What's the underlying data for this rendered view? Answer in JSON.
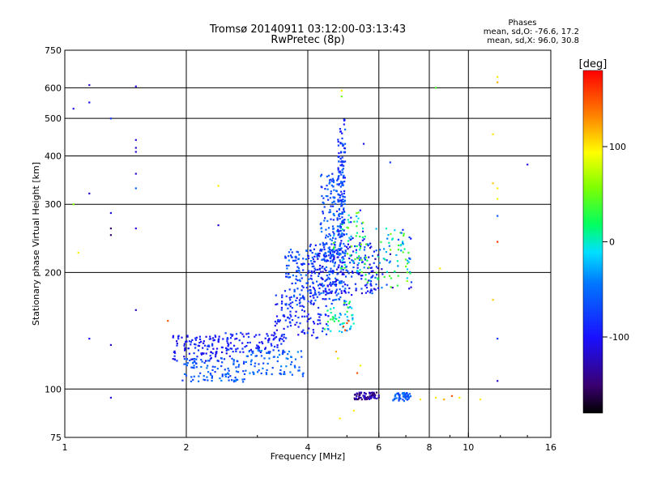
{
  "chart_data": {
    "type": "scatter",
    "title": "Tromsø 20140911 03:12:00-03:13:43",
    "subtitle": "RwPretec (8p)",
    "stats": {
      "header": "Phases",
      "line1": "mean, sd,O: -76.6, 17.2",
      "line2": "mean, sd,X:  96.0, 30.8"
    },
    "xlabel": "Frequency [MHz]",
    "ylabel": "Stationary phase Virtual Height [km]",
    "x_scale": "log",
    "y_scale": "log",
    "xlim": [
      1,
      16
    ],
    "ylim": [
      75,
      750
    ],
    "x_ticks": [
      {
        "value": 1,
        "label": "1"
      },
      {
        "value": 2,
        "label": "2"
      },
      {
        "value": 4,
        "label": "4"
      },
      {
        "value": 6,
        "label": "6"
      },
      {
        "value": 8,
        "label": "8"
      },
      {
        "value": 10,
        "label": "10"
      },
      {
        "value": 16,
        "label": "16"
      }
    ],
    "y_ticks": [
      {
        "value": 75,
        "label": "75"
      },
      {
        "value": 100,
        "label": "100"
      },
      {
        "value": 200,
        "label": "200"
      },
      {
        "value": 300,
        "label": "300"
      },
      {
        "value": 400,
        "label": "400"
      },
      {
        "value": 500,
        "label": "500"
      },
      {
        "value": 600,
        "label": "600"
      },
      {
        "value": 750,
        "label": "750"
      }
    ],
    "grid": true,
    "colorbar": {
      "label": "[deg]",
      "range": [
        -180,
        180
      ],
      "ticks": [
        {
          "value": 100,
          "label": "100"
        },
        {
          "value": 0,
          "label": "0"
        },
        {
          "value": -100,
          "label": "-100"
        }
      ]
    },
    "points": [
      [
        1.05,
        530,
        -110
      ],
      [
        1.05,
        300,
        60
      ],
      [
        1.08,
        225,
        100
      ],
      [
        1.15,
        610,
        -120
      ],
      [
        1.15,
        550,
        -110
      ],
      [
        1.15,
        320,
        -120
      ],
      [
        1.15,
        135,
        -100
      ],
      [
        1.3,
        95,
        -110
      ],
      [
        1.3,
        285,
        -110
      ],
      [
        1.3,
        250,
        -150
      ],
      [
        1.3,
        260,
        -150
      ],
      [
        1.3,
        500,
        -80
      ],
      [
        1.3,
        130,
        -120
      ],
      [
        1.5,
        605,
        -110
      ],
      [
        1.5,
        440,
        -110
      ],
      [
        1.5,
        420,
        -110
      ],
      [
        1.5,
        410,
        -110
      ],
      [
        1.5,
        360,
        -110
      ],
      [
        1.5,
        330,
        -60
      ],
      [
        1.5,
        260,
        -110
      ],
      [
        1.5,
        160,
        -120
      ],
      [
        1.8,
        150,
        150
      ],
      [
        2.4,
        335,
        100
      ],
      [
        2.4,
        265,
        -120
      ],
      [
        4.85,
        590,
        100
      ],
      [
        4.85,
        570,
        50
      ],
      [
        5.5,
        430,
        -110
      ],
      [
        6.4,
        385,
        -80
      ],
      [
        8.3,
        600,
        40
      ],
      [
        8.5,
        205,
        100
      ],
      [
        11.8,
        640,
        100
      ],
      [
        11.8,
        620,
        120
      ],
      [
        11.5,
        455,
        100
      ],
      [
        11.5,
        340,
        110
      ],
      [
        11.8,
        330,
        100
      ],
      [
        11.8,
        310,
        90
      ],
      [
        11.8,
        280,
        -60
      ],
      [
        11.8,
        240,
        160
      ],
      [
        11.5,
        170,
        110
      ],
      [
        11.8,
        135,
        -80
      ],
      [
        11.8,
        105,
        -120
      ],
      [
        14,
        380,
        -110
      ],
      [
        10.7,
        94,
        100
      ],
      [
        9.5,
        95,
        100
      ],
      [
        9.1,
        96,
        150
      ],
      [
        8.7,
        94,
        120
      ],
      [
        8.3,
        95,
        100
      ],
      [
        7.6,
        94,
        100
      ],
      [
        4.8,
        84,
        100
      ],
      [
        5.2,
        88,
        100
      ],
      [
        4.9,
        145,
        160
      ],
      [
        5.0,
        148,
        150
      ],
      [
        4.95,
        142,
        160
      ],
      [
        5.05,
        150,
        150
      ],
      [
        4.7,
        125,
        120
      ],
      [
        4.75,
        120,
        80
      ],
      [
        5.3,
        110,
        150
      ],
      [
        5.4,
        115,
        90
      ]
    ],
    "clusters": [
      {
        "x": [
          1.85,
          2.6
        ],
        "y": [
          118,
          138
        ],
        "n": 110,
        "phase": [
          -115,
          -75
        ],
        "seed": 11
      },
      {
        "x": [
          1.95,
          2.8
        ],
        "y": [
          104,
          120
        ],
        "n": 100,
        "phase": [
          -80,
          -40
        ],
        "seed": 12
      },
      {
        "x": [
          2.5,
          3.5
        ],
        "y": [
          124,
          140
        ],
        "n": 90,
        "phase": [
          -110,
          -70
        ],
        "seed": 13
      },
      {
        "x": [
          2.8,
          3.9
        ],
        "y": [
          108,
          126
        ],
        "n": 80,
        "phase": [
          -75,
          -35
        ],
        "seed": 14
      },
      {
        "x": [
          3.3,
          4.5
        ],
        "y": [
          135,
          175
        ],
        "n": 120,
        "phase": [
          -110,
          -70
        ],
        "seed": 15
      },
      {
        "x": [
          3.5,
          5.0
        ],
        "y": [
          165,
          230
        ],
        "n": 220,
        "phase": [
          -90,
          -40
        ],
        "seed": 16
      },
      {
        "x": [
          4.0,
          5.8
        ],
        "y": [
          175,
          240
        ],
        "n": 200,
        "phase": [
          -120,
          -60
        ],
        "seed": 17
      },
      {
        "x": [
          4.6,
          5.6
        ],
        "y": [
          200,
          290
        ],
        "n": 90,
        "phase": [
          -110,
          60
        ],
        "seed": 18
      },
      {
        "x": [
          4.3,
          4.9
        ],
        "y": [
          220,
          360
        ],
        "n": 140,
        "phase": [
          -90,
          -40
        ],
        "seed": 19
      },
      {
        "x": [
          4.75,
          4.95
        ],
        "y": [
          250,
          500
        ],
        "n": 120,
        "phase": [
          -100,
          -50
        ],
        "seed": 20
      },
      {
        "x": [
          5.5,
          7.3
        ],
        "y": [
          180,
          260
        ],
        "n": 110,
        "phase": [
          -130,
          60
        ],
        "seed": 21
      },
      {
        "x": [
          5.2,
          6.0
        ],
        "y": [
          94,
          98
        ],
        "n": 70,
        "phase": [
          -160,
          -110
        ],
        "seed": 22
      },
      {
        "x": [
          6.5,
          7.2
        ],
        "y": [
          93,
          98
        ],
        "n": 50,
        "phase": [
          -80,
          -40
        ],
        "seed": 23
      },
      {
        "x": [
          4.4,
          5.2
        ],
        "y": [
          140,
          170
        ],
        "n": 50,
        "phase": [
          -40,
          40
        ],
        "seed": 24
      }
    ]
  }
}
